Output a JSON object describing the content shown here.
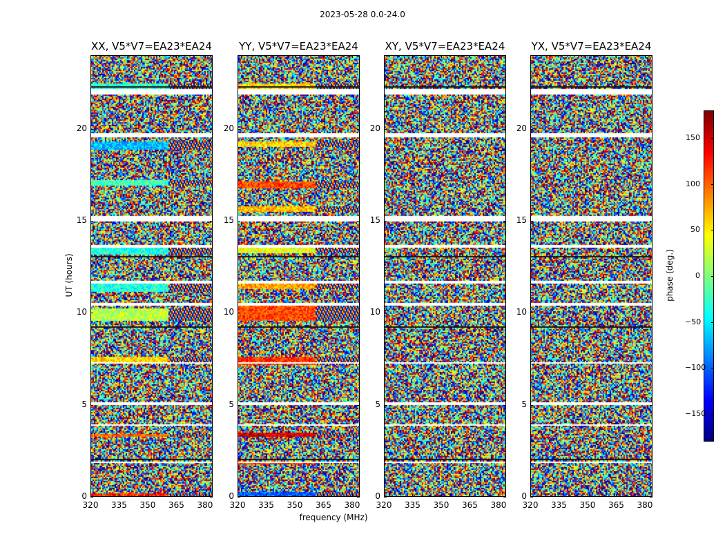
{
  "chart_data": [
    {
      "type": "heatmap",
      "title": "XX, V5*V7=EA23*EA24",
      "xlabel": "frequency (MHz)",
      "ylabel": "UT (hours)",
      "xlim": [
        320,
        384
      ],
      "ylim": [
        0,
        24
      ],
      "xticks": [
        320,
        335,
        350,
        365,
        380
      ],
      "yticks": [
        0,
        5,
        10,
        15,
        20
      ]
    },
    {
      "type": "heatmap",
      "title": "YY, V5*V7=EA23*EA24",
      "xlabel": "frequency (MHz)",
      "ylabel": "",
      "xlim": [
        320,
        384
      ],
      "ylim": [
        0,
        24
      ],
      "xticks": [
        320,
        335,
        350,
        365,
        380
      ],
      "yticks": [
        0,
        5,
        10,
        15,
        20
      ]
    },
    {
      "type": "heatmap",
      "title": "XY, V5*V7=EA23*EA24",
      "xlabel": "",
      "ylabel": "",
      "xlim": [
        320,
        384
      ],
      "ylim": [
        0,
        24
      ],
      "xticks": [
        320,
        335,
        350,
        365,
        380
      ],
      "yticks": [
        0,
        5,
        10,
        15,
        20
      ]
    },
    {
      "type": "heatmap",
      "title": "YX, V5*V7=EA23*EA24",
      "xlabel": "",
      "ylabel": "",
      "xlim": [
        320,
        384
      ],
      "ylim": [
        0,
        24
      ],
      "xticks": [
        320,
        335,
        350,
        365,
        380
      ],
      "yticks": [
        0,
        5,
        10,
        15,
        20
      ]
    }
  ],
  "figure": {
    "suptitle": "2023-05-28 0.0-24.0",
    "xlabel": "frequency (MHz)",
    "ylabel": "UT (hours)",
    "ytick_labels": [
      "0",
      "5",
      "10",
      "15",
      "20"
    ],
    "xtick_labels": [
      "320",
      "335",
      "350",
      "365",
      "380"
    ]
  },
  "colorbar": {
    "label": "phase (deg.)",
    "range": [
      -180,
      180
    ],
    "ticks": [
      -150,
      -100,
      -50,
      0,
      50,
      100,
      150
    ],
    "tick_labels": [
      "−150",
      "−100",
      "−50",
      "0",
      "50",
      "100",
      "150"
    ],
    "colormap": "jet"
  }
}
